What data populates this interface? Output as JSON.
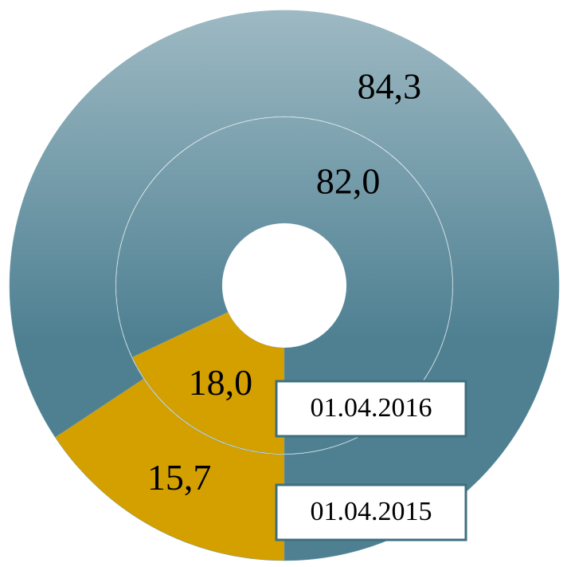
{
  "chart_data": {
    "type": "donut",
    "colors": [
      "#4e8092",
      "#d4a000"
    ],
    "series": [
      {
        "name": "01.04.2015",
        "values": [
          84.3,
          15.7
        ],
        "value_labels": [
          "84,3",
          "15,7"
        ]
      },
      {
        "name": "01.04.2016",
        "values": [
          82.0,
          18.0
        ],
        "value_labels": [
          "82,0",
          "18,0"
        ]
      }
    ]
  }
}
